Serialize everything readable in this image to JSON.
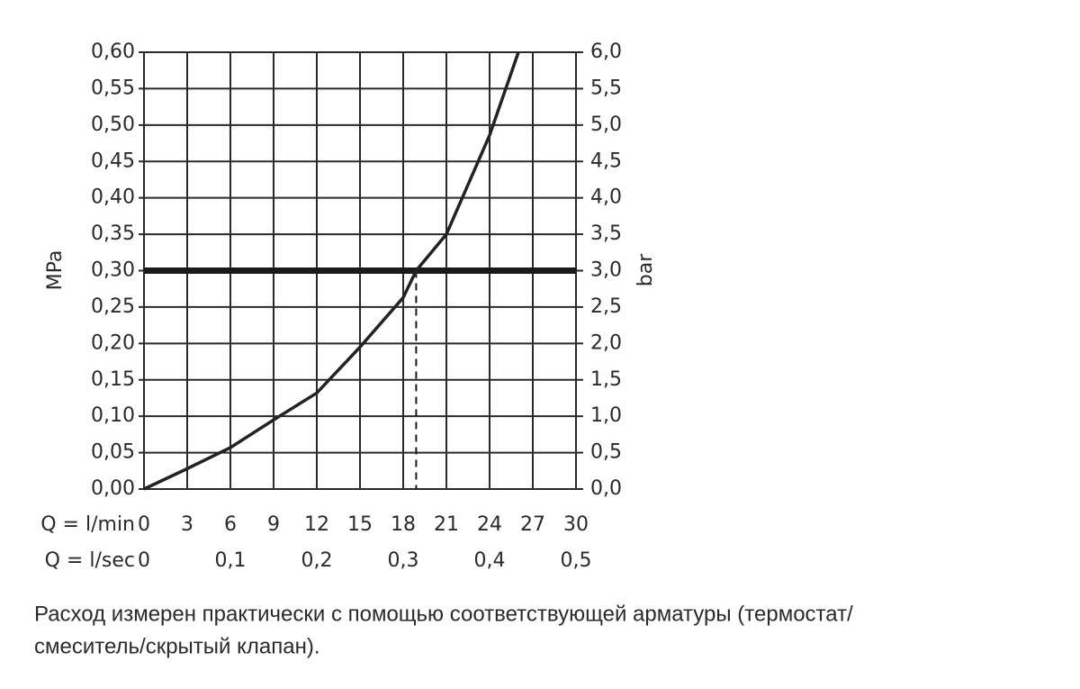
{
  "chart_data": {
    "type": "line",
    "ylabel": "MPa",
    "y2label": "bar",
    "xlabel": "Q = l/min",
    "x2label": "Q = l/sec",
    "x": [
      0,
      3,
      6,
      9,
      12,
      15,
      18,
      18.9,
      21,
      24,
      26
    ],
    "values": [
      0,
      0.028,
      0.057,
      0.095,
      0.132,
      0.195,
      0.263,
      0.3,
      0.35,
      0.486,
      0.6
    ],
    "color": "#222222",
    "xlim": [
      0,
      30
    ],
    "xticks": [
      0,
      3,
      6,
      9,
      12,
      15,
      18,
      21,
      24,
      27,
      30
    ],
    "x2lim": [
      0,
      0.5
    ],
    "x2ticks": [
      0,
      {
        "value": 0.1,
        "label": "0,1"
      },
      {
        "value": 0.2,
        "label": "0,2"
      },
      {
        "value": 0.3,
        "label": "0,3"
      },
      {
        "value": 0.4,
        "label": "0,4"
      },
      {
        "value": 0.5,
        "label": "0,5"
      }
    ],
    "ylim": [
      0,
      0.6
    ],
    "yticks": [
      {
        "value": 0,
        "label": "0,00"
      },
      {
        "value": 0.05,
        "label": "0,05"
      },
      {
        "value": 0.1,
        "label": "0,10"
      },
      {
        "value": 0.15,
        "label": "0,15"
      },
      {
        "value": 0.2,
        "label": "0,20"
      },
      {
        "value": 0.25,
        "label": "0,25"
      },
      {
        "value": 0.3,
        "label": "0,30"
      },
      {
        "value": 0.35,
        "label": "0,35"
      },
      {
        "value": 0.4,
        "label": "0,40"
      },
      {
        "value": 0.45,
        "label": "0,45"
      },
      {
        "value": 0.5,
        "label": "0,50"
      },
      {
        "value": 0.55,
        "label": "0,55"
      },
      {
        "value": 0.6,
        "label": "0,60"
      }
    ],
    "y2lim": [
      0,
      6
    ],
    "y2ticks": [
      {
        "value": 0,
        "label": "0,0"
      },
      {
        "value": 0.5,
        "label": "0,5"
      },
      {
        "value": 1,
        "label": "1,0"
      },
      {
        "value": 1.5,
        "label": "1,5"
      },
      {
        "value": 2,
        "label": "2,0"
      },
      {
        "value": 2.5,
        "label": "2,5"
      },
      {
        "value": 3,
        "label": "3,0"
      },
      {
        "value": 3.5,
        "label": "3,5"
      },
      {
        "value": 4,
        "label": "4,0"
      },
      {
        "value": 4.5,
        "label": "4,5"
      },
      {
        "value": 5,
        "label": "5,0"
      },
      {
        "value": 5.5,
        "label": "5,5"
      },
      {
        "value": 6,
        "label": "6,0"
      }
    ],
    "reference_y": 0.3,
    "marker_x": 18.9,
    "grid": true,
    "note_lines": [
      "Расход измерен практически с помощью соответствующей арматуры (термостат/",
      "смеситель/скрытый клапан)."
    ]
  }
}
